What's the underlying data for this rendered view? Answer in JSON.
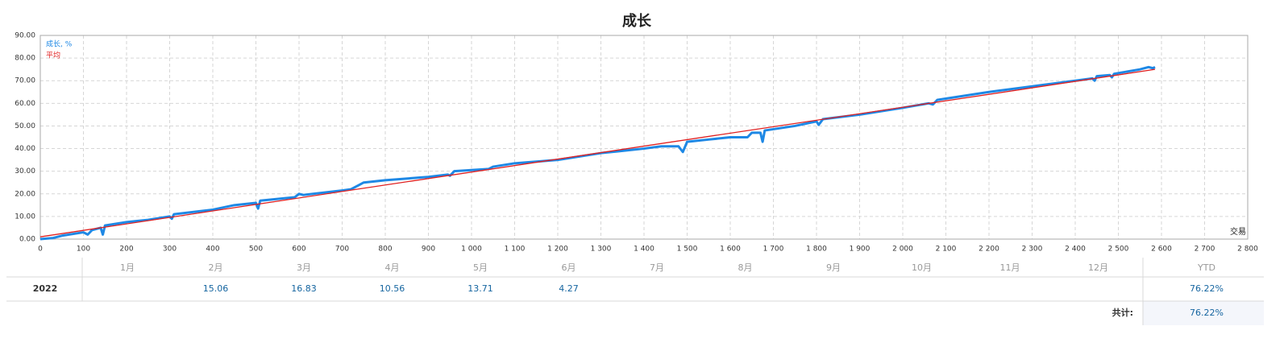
{
  "chart_data": {
    "type": "line",
    "title": "成长",
    "x_label": "交易",
    "xlim": [
      0,
      2800
    ],
    "ylim": [
      0,
      90
    ],
    "grid": true,
    "legend": "top-left",
    "xticks": [
      0,
      100,
      200,
      300,
      400,
      500,
      600,
      700,
      800,
      900,
      {
        "value": 1000,
        "label": "1 000"
      },
      {
        "value": 1100,
        "label": "1 100"
      },
      {
        "value": 1200,
        "label": "1 200"
      },
      {
        "value": 1300,
        "label": "1 300"
      },
      {
        "value": 1400,
        "label": "1 400"
      },
      {
        "value": 1500,
        "label": "1 500"
      },
      {
        "value": 1600,
        "label": "1 600"
      },
      {
        "value": 1700,
        "label": "1 700"
      },
      {
        "value": 1800,
        "label": "1 800"
      },
      {
        "value": 1900,
        "label": "1 900"
      },
      {
        "value": 2000,
        "label": "2 000"
      },
      {
        "value": 2100,
        "label": "2 100"
      },
      {
        "value": 2200,
        "label": "2 200"
      },
      {
        "value": 2300,
        "label": "2 300"
      },
      {
        "value": 2400,
        "label": "2 400"
      },
      {
        "value": 2500,
        "label": "2 500"
      },
      {
        "value": 2600,
        "label": "2 600"
      },
      {
        "value": 2700,
        "label": "2 700"
      },
      {
        "value": 2800,
        "label": "2 800"
      }
    ],
    "yticks": [
      {
        "value": 0,
        "label": "0.00"
      },
      {
        "value": 10,
        "label": "10.00"
      },
      {
        "value": 20,
        "label": "20.00"
      },
      {
        "value": 30,
        "label": "30.00"
      },
      {
        "value": 40,
        "label": "40.00"
      },
      {
        "value": 50,
        "label": "50.00"
      },
      {
        "value": 60,
        "label": "60.00"
      },
      {
        "value": 70,
        "label": "70.00"
      },
      {
        "value": 80,
        "label": "80.00"
      },
      {
        "value": 90,
        "label": "90.00"
      }
    ],
    "series": [
      {
        "name": "成长, %",
        "color": "#1e88e5",
        "x": [
          0,
          30,
          50,
          100,
          110,
          120,
          140,
          145,
          150,
          200,
          250,
          300,
          305,
          310,
          400,
          450,
          500,
          505,
          510,
          590,
          600,
          610,
          700,
          720,
          740,
          750,
          800,
          900,
          945,
          950,
          960,
          1000,
          1040,
          1050,
          1100,
          1200,
          1300,
          1400,
          1440,
          1480,
          1490,
          1500,
          1550,
          1600,
          1640,
          1650,
          1670,
          1675,
          1680,
          1750,
          1800,
          1805,
          1815,
          1900,
          2000,
          2060,
          2070,
          2080,
          2200,
          2300,
          2400,
          2440,
          2445,
          2450,
          2480,
          2485,
          2490,
          2550,
          2570,
          2580,
          2585
        ],
        "values": [
          0,
          0.5,
          1.5,
          3,
          2,
          4,
          5,
          2,
          6,
          7.5,
          8.5,
          10,
          9,
          11,
          13,
          15,
          16,
          13.5,
          17,
          18.5,
          20,
          19.5,
          21.5,
          22,
          24,
          25,
          26,
          27.5,
          28.5,
          28,
          30,
          30.5,
          31,
          32,
          33.5,
          35,
          38,
          40,
          41,
          41,
          38.5,
          43,
          44,
          45,
          45,
          47,
          47,
          43,
          48,
          50,
          52,
          50.5,
          53,
          55,
          58,
          60,
          59.5,
          61.5,
          65,
          67.5,
          70,
          71,
          70,
          72,
          72.5,
          71.5,
          73,
          75,
          76,
          75.5,
          76
        ]
      },
      {
        "name": "平均",
        "color": "#e02020",
        "x": [
          0,
          2585
        ],
        "values": [
          1,
          75
        ]
      }
    ]
  },
  "table": {
    "header": [
      "1月",
      "2月",
      "3月",
      "4月",
      "5月",
      "6月",
      "7月",
      "8月",
      "9月",
      "10月",
      "11月",
      "12月",
      "YTD"
    ],
    "rows": [
      {
        "year": "2022",
        "months": [
          null,
          "15.06",
          "16.83",
          "10.56",
          "13.71",
          "4.27",
          null,
          null,
          null,
          null,
          null,
          null
        ],
        "ytd": "76.22%"
      }
    ],
    "total_label": "共计:",
    "total": "76.22%"
  }
}
